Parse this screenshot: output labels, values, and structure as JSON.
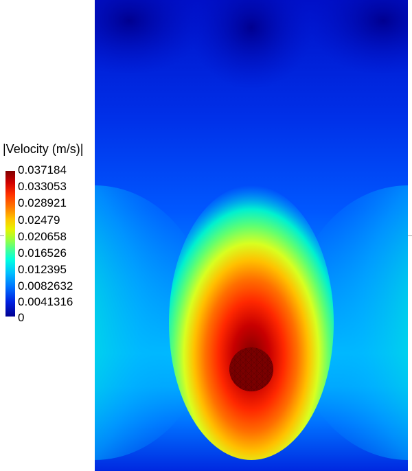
{
  "legend": {
    "title": "|Velocity (m/s)|",
    "ticks": [
      "0.037184",
      "0.033053",
      "0.028921",
      "0.02479",
      "0.020658",
      "0.016526",
      "0.012395",
      "0.0082632",
      "0.0041316",
      "0"
    ],
    "colormap": [
      "#800000",
      "#ff3000",
      "#ffc400",
      "#3cffa0",
      "#00c0ff",
      "#0020e0",
      "#000090"
    ]
  },
  "icons": [
    "colorbar"
  ]
}
